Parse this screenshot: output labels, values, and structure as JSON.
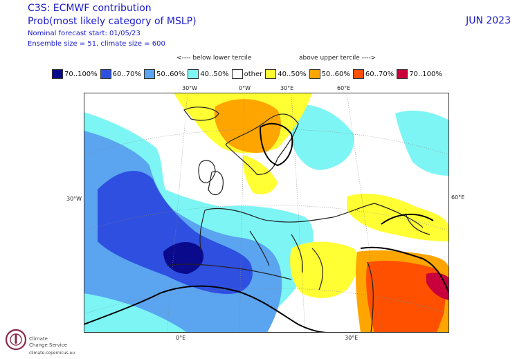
{
  "header": {
    "title_line1": "C3S: ECMWF contribution",
    "title_line2": "Prob(most likely category of MSLP)",
    "forecast_start": "Nominal forecast start: 01/05/23",
    "ensemble": "Ensemble size = 51, climate size = 600",
    "month": "JUN 2023"
  },
  "tercile_labels": {
    "below": "<---- below lower tercile",
    "above": "above upper tercile ---->"
  },
  "legend": [
    {
      "label": "70..100%",
      "color": "#0a0a8c"
    },
    {
      "label": "60..70%",
      "color": "#2e4fe0"
    },
    {
      "label": "50..60%",
      "color": "#5aa4f0"
    },
    {
      "label": "40..50%",
      "color": "#7df5f5"
    },
    {
      "label": "other",
      "color": "#ffffff"
    },
    {
      "label": "40..50%",
      "color": "#ffff33"
    },
    {
      "label": "50..60%",
      "color": "#ffa500"
    },
    {
      "label": "60..70%",
      "color": "#ff5000"
    },
    {
      "label": "70..100%",
      "color": "#c8003c"
    }
  ],
  "coords": {
    "top": [
      "30°W",
      "0°W",
      "30°E",
      "60°E"
    ],
    "left": "30°W",
    "right": "60°E",
    "bottom": [
      "0°E",
      "30°E"
    ]
  },
  "logo": {
    "line1": "Climate",
    "line2": "Change Service",
    "url": "climate.copernicus.eu"
  }
}
